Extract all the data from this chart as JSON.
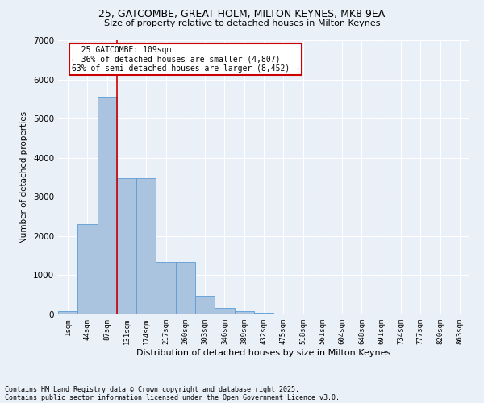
{
  "title1": "25, GATCOMBE, GREAT HOLM, MILTON KEYNES, MK8 9EA",
  "title2": "Size of property relative to detached houses in Milton Keynes",
  "xlabel": "Distribution of detached houses by size in Milton Keynes",
  "ylabel": "Number of detached properties",
  "bar_color": "#aac4e0",
  "bar_edge_color": "#5b9bd5",
  "bg_color": "#eaf0f8",
  "grid_color": "#ffffff",
  "categories": [
    "1sqm",
    "44sqm",
    "87sqm",
    "131sqm",
    "174sqm",
    "217sqm",
    "260sqm",
    "303sqm",
    "346sqm",
    "389sqm",
    "432sqm",
    "475sqm",
    "518sqm",
    "561sqm",
    "604sqm",
    "648sqm",
    "691sqm",
    "734sqm",
    "777sqm",
    "820sqm",
    "863sqm"
  ],
  "values": [
    90,
    2300,
    5550,
    3470,
    3470,
    1330,
    1330,
    470,
    160,
    90,
    40,
    0,
    0,
    0,
    0,
    0,
    0,
    0,
    0,
    0,
    0
  ],
  "ylim": [
    0,
    7000
  ],
  "yticks": [
    0,
    1000,
    2000,
    3000,
    4000,
    5000,
    6000,
    7000
  ],
  "property_line_x": 2.5,
  "annotation_text": "  25 GATCOMBE: 109sqm\n← 36% of detached houses are smaller (4,807)\n63% of semi-detached houses are larger (8,452) →",
  "annotation_box_color": "#ffffff",
  "annotation_box_edge_color": "#cc0000",
  "vline_color": "#cc0000",
  "footer1": "Contains HM Land Registry data © Crown copyright and database right 2025.",
  "footer2": "Contains public sector information licensed under the Open Government Licence v3.0."
}
